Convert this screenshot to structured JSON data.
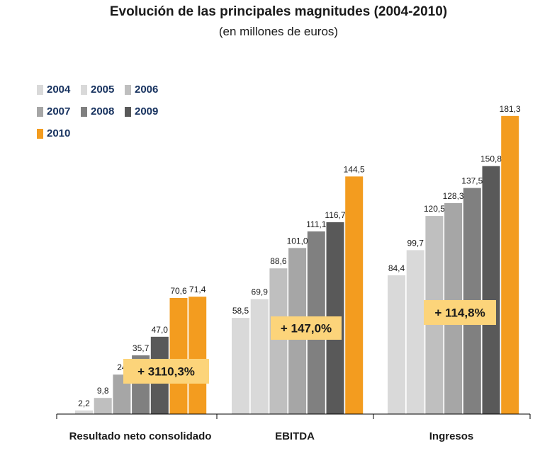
{
  "chart_data": {
    "type": "bar",
    "title": "Evolución de las principales magnitudes (2004-2010)",
    "subtitle": "(en millones de euros)",
    "categories": [
      "Resultado neto consolidado",
      "EBITDA",
      "Ingresos"
    ],
    "series": [
      {
        "name": "2004",
        "color": "#d9d9d9",
        "values": [
          null,
          58.5,
          84.4
        ],
        "labels": [
          "",
          "58,5",
          "84,4"
        ]
      },
      {
        "name": "2005",
        "color": "#d9d9d9",
        "values": [
          2.2,
          69.9,
          99.7
        ],
        "labels": [
          "2,2",
          "69,9",
          "99,7"
        ]
      },
      {
        "name": "2006",
        "color": "#bfbfbf",
        "values": [
          9.8,
          88.6,
          120.5
        ],
        "labels": [
          "9,8",
          "88,6",
          "120,5"
        ]
      },
      {
        "name": "2007",
        "color": "#a6a6a6",
        "values": [
          24,
          101.0,
          128.3
        ],
        "labels": [
          "24",
          "101,0",
          "128,3"
        ]
      },
      {
        "name": "2008",
        "color": "#808080",
        "values": [
          35.7,
          111.1,
          137.5
        ],
        "labels": [
          "35,7",
          "111,1",
          "137,5"
        ]
      },
      {
        "name": "2009",
        "color": "#595959",
        "values": [
          47.0,
          116.7,
          150.8
        ],
        "labels": [
          "47,0",
          "116,7",
          "150,8"
        ]
      },
      {
        "name": "2010",
        "color": "#f39c1f",
        "values": [
          70.6,
          144.5,
          181.3
        ],
        "labels": [
          "70,6",
          "144,5",
          "181,3"
        ]
      }
    ],
    "extra_bar": {
      "category": 0,
      "value": 71.4,
      "label": "71,4",
      "color": "#f39c1f"
    },
    "growth_labels": [
      "+ 3110,3%",
      "+ 147,0%",
      "+ 114,8%"
    ],
    "growth_color": "#fcd47a",
    "ylim": [
      0,
      200
    ],
    "grid": false,
    "legend_position": "top-left"
  }
}
